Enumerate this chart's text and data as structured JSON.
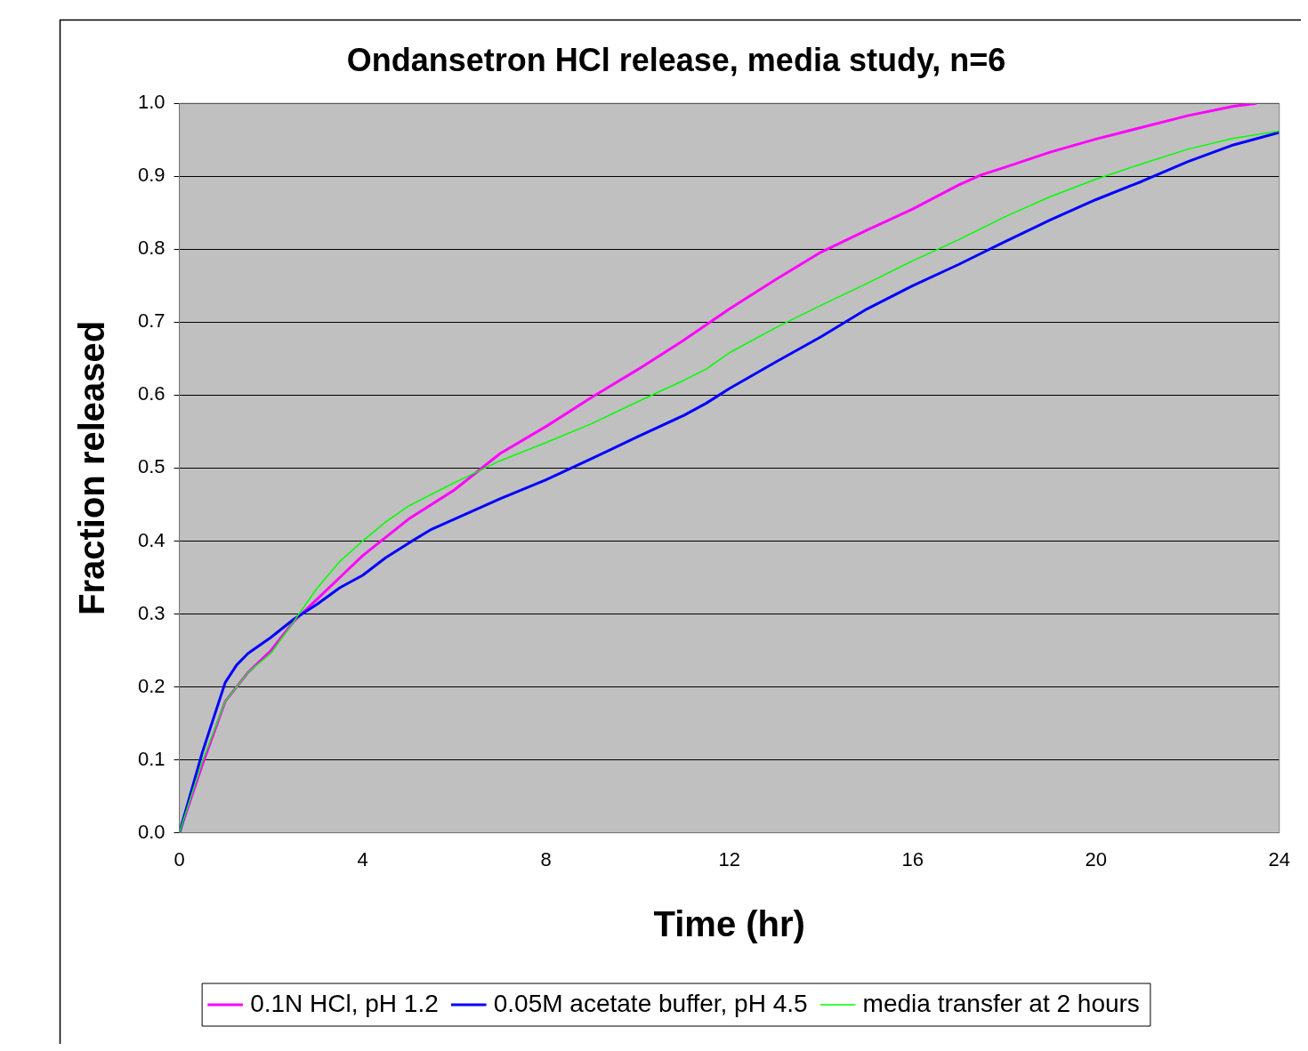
{
  "chart_data": {
    "type": "line",
    "title": "Ondansetron HCl release, media study, n=6",
    "xlabel": "Time (hr)",
    "ylabel": "Fraction released",
    "xlim": [
      0,
      24
    ],
    "xticks": [
      0,
      4,
      8,
      12,
      16,
      20,
      24
    ],
    "ylim": [
      0,
      1
    ],
    "yticks": [
      {
        "value": 0,
        "label": "0.0"
      },
      {
        "value": 0.1,
        "label": "0.1"
      },
      {
        "value": 0.2,
        "label": "0.2"
      },
      {
        "value": 0.3,
        "label": "0.3"
      },
      {
        "value": 0.4,
        "label": "0.4"
      },
      {
        "value": 0.5,
        "label": "0.5"
      },
      {
        "value": 0.6,
        "label": "0.6"
      },
      {
        "value": 0.7,
        "label": "0.7"
      },
      {
        "value": 0.8,
        "label": "0.8"
      },
      {
        "value": 0.9,
        "label": "0.9"
      },
      {
        "value": 1,
        "label": "1.0"
      }
    ],
    "grid": "y",
    "legend": "bottom",
    "marker": "none",
    "line_style": "solid",
    "series": [
      {
        "name": "0.1N HCl, pH 1.2",
        "color": "#ff00ff",
        "x": [
          0,
          0.5,
          1,
          1.5,
          2,
          2.5,
          3,
          3.5,
          4,
          5,
          6,
          7,
          8,
          9,
          10,
          11,
          12,
          13,
          14,
          15,
          16,
          17,
          17.5,
          18,
          19,
          20,
          21,
          22,
          23,
          23.5
        ],
        "values": [
          0,
          0.093,
          0.18,
          0.22,
          0.25,
          0.29,
          0.32,
          0.35,
          0.38,
          0.43,
          0.47,
          0.52,
          0.557,
          0.597,
          0.635,
          0.675,
          0.718,
          0.758,
          0.796,
          0.826,
          0.855,
          0.888,
          0.902,
          0.912,
          0.933,
          0.951,
          0.967,
          0.983,
          0.996,
          1.0
        ]
      },
      {
        "name": "0.05M acetate buffer, pH 4.5",
        "color": "#0000ff",
        "x": [
          0,
          0.5,
          1,
          1.25,
          1.5,
          2,
          2.5,
          3,
          3.5,
          4,
          4.5,
          5,
          5.5,
          6,
          7,
          8,
          9,
          10,
          11,
          11.5,
          12,
          13,
          14,
          15,
          16,
          17,
          18,
          19,
          20,
          21,
          22,
          23,
          24
        ],
        "values": [
          0,
          0.11,
          0.206,
          0.23,
          0.246,
          0.268,
          0.293,
          0.313,
          0.336,
          0.353,
          0.377,
          0.397,
          0.416,
          0.43,
          0.458,
          0.484,
          0.513,
          0.543,
          0.572,
          0.589,
          0.609,
          0.645,
          0.68,
          0.718,
          0.75,
          0.779,
          0.81,
          0.84,
          0.868,
          0.893,
          0.92,
          0.943,
          0.96
        ]
      },
      {
        "name": "media transfer at 2 hours",
        "color": "#00ff00",
        "x": [
          0,
          0.5,
          1,
          1.5,
          2,
          2.5,
          3,
          3.5,
          4,
          4.5,
          5,
          6,
          7,
          8,
          9,
          10,
          11,
          11.5,
          12,
          13,
          14,
          15,
          16,
          17,
          18,
          19,
          20,
          21,
          22,
          23,
          24
        ],
        "values": [
          0,
          0.098,
          0.18,
          0.22,
          0.246,
          0.29,
          0.335,
          0.372,
          0.4,
          0.426,
          0.448,
          0.48,
          0.51,
          0.535,
          0.561,
          0.591,
          0.62,
          0.636,
          0.658,
          0.692,
          0.723,
          0.753,
          0.784,
          0.813,
          0.844,
          0.872,
          0.896,
          0.917,
          0.937,
          0.952,
          0.962
        ]
      }
    ]
  }
}
